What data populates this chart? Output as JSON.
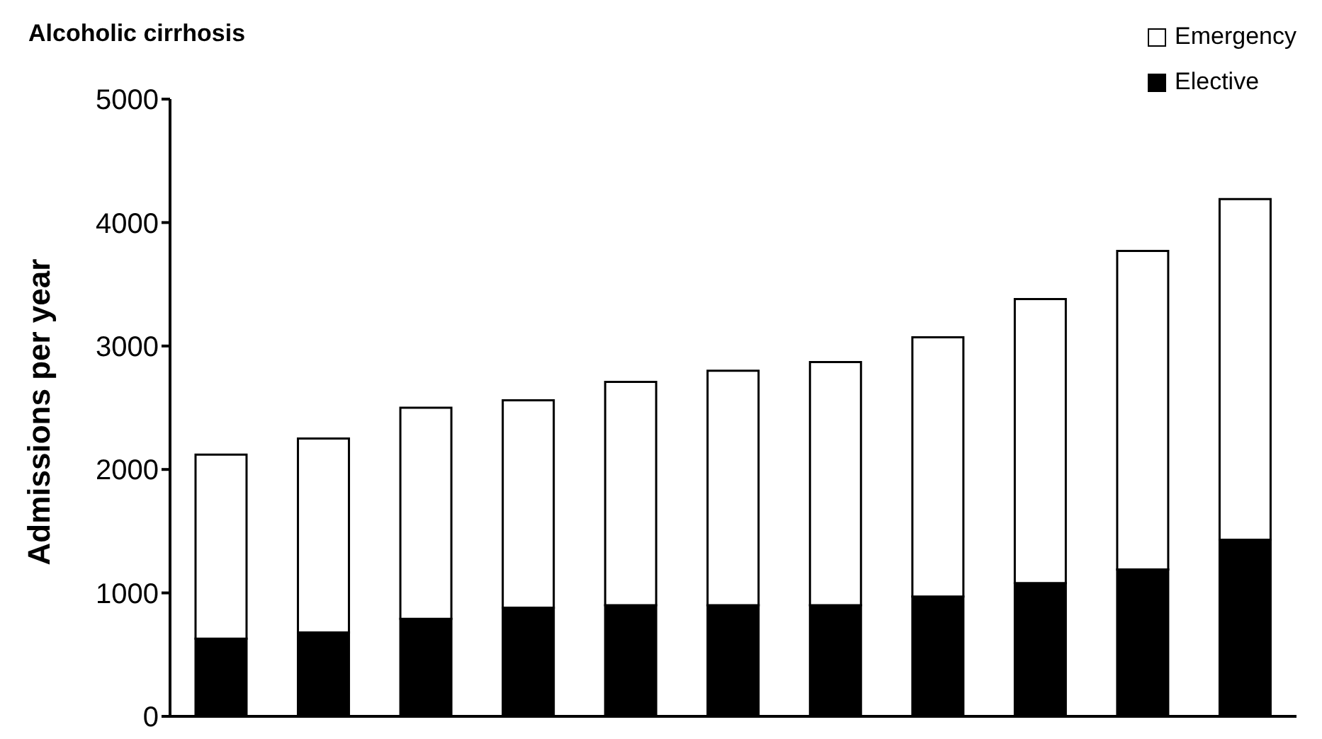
{
  "chart_data": {
    "type": "bar",
    "title": "Alcoholic cirrhosis",
    "ylabel": "Admissions per year",
    "categories": [
      null,
      null,
      null,
      null,
      null,
      null,
      null,
      null,
      null,
      null,
      null
    ],
    "stacked": true,
    "series": [
      {
        "name": "Elective",
        "color": "#000000",
        "values": [
          630,
          680,
          790,
          880,
          900,
          900,
          900,
          970,
          1080,
          1190,
          1430
        ]
      },
      {
        "name": "Emergency",
        "color": "#ffffff",
        "values": [
          1490,
          1570,
          1710,
          1680,
          1810,
          1900,
          1970,
          2100,
          2300,
          2580,
          2760
        ]
      }
    ],
    "ylim": [
      0,
      5000
    ],
    "yticks": [
      0,
      1000,
      2000,
      3000,
      4000,
      5000
    ],
    "grid": false,
    "legend": "top right",
    "tick_labels": "y"
  }
}
